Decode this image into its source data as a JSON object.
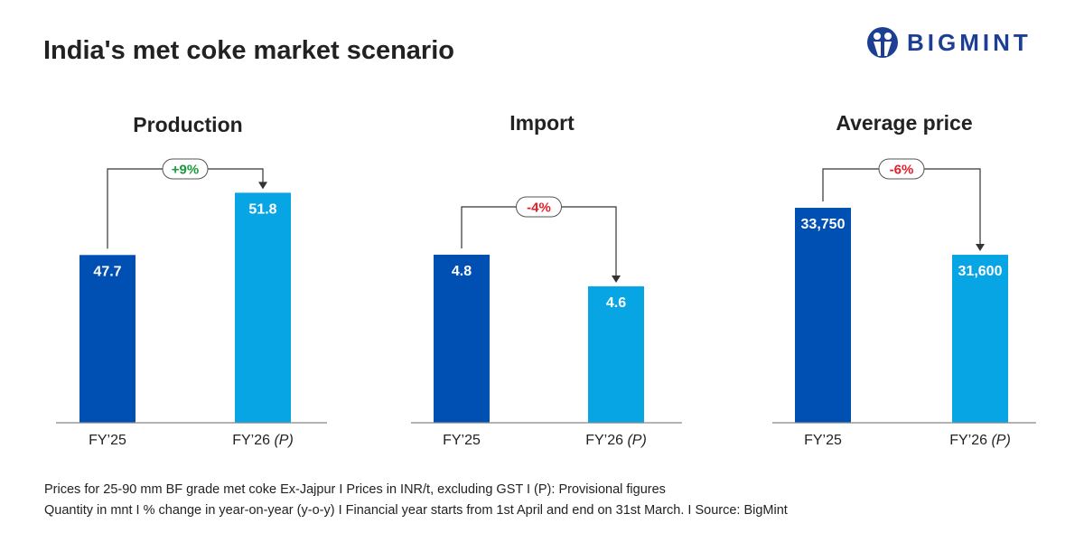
{
  "title": "India's met coke market scenario",
  "logo": {
    "text": "BIGMINT"
  },
  "colors": {
    "fy25": "#0050b4",
    "fy26": "#08a5e5",
    "increase": "#1a9a3c",
    "decrease": "#e0202a",
    "axis": "#888888",
    "connector": "#333333"
  },
  "chart_data": [
    {
      "type": "bar",
      "title": "Production",
      "categories": [
        "FY’25",
        "FY’26"
      ],
      "category_suffix": [
        "",
        "(P)"
      ],
      "values": [
        47.7,
        51.8
      ],
      "labels": [
        "47.7",
        "51.8"
      ],
      "change": "+9%",
      "change_dir": "up",
      "ylim": [
        36.65,
        54.5
      ]
    },
    {
      "type": "bar",
      "title": "Import",
      "categories": [
        "FY’25",
        "FY’26"
      ],
      "category_suffix": [
        "",
        "(P)"
      ],
      "values": [
        4.8,
        4.6
      ],
      "labels": [
        "4.8",
        "4.6"
      ],
      "change": "-4%",
      "change_dir": "down",
      "ylim": [
        3.737,
        5.451
      ]
    },
    {
      "type": "bar",
      "title": "Average price",
      "categories": [
        "FY’25",
        "FY’26"
      ],
      "category_suffix": [
        "",
        "(P)"
      ],
      "values": [
        33750,
        31600
      ],
      "labels": [
        "33,750",
        "31,600"
      ],
      "change": "-6%",
      "change_dir": "down",
      "ylim": [
        23912,
        36315
      ]
    }
  ],
  "footnotes": [
    "Prices for 25-90 mm BF grade met coke Ex-Jajpur  I  Prices in INR/t, excluding GST  I  (P): Provisional figures",
    "Quantity in mnt  I  % change in year-on-year (y-o-y)  I  Financial year starts from 1st April and end on 31st March.  I  Source: BigMint"
  ]
}
